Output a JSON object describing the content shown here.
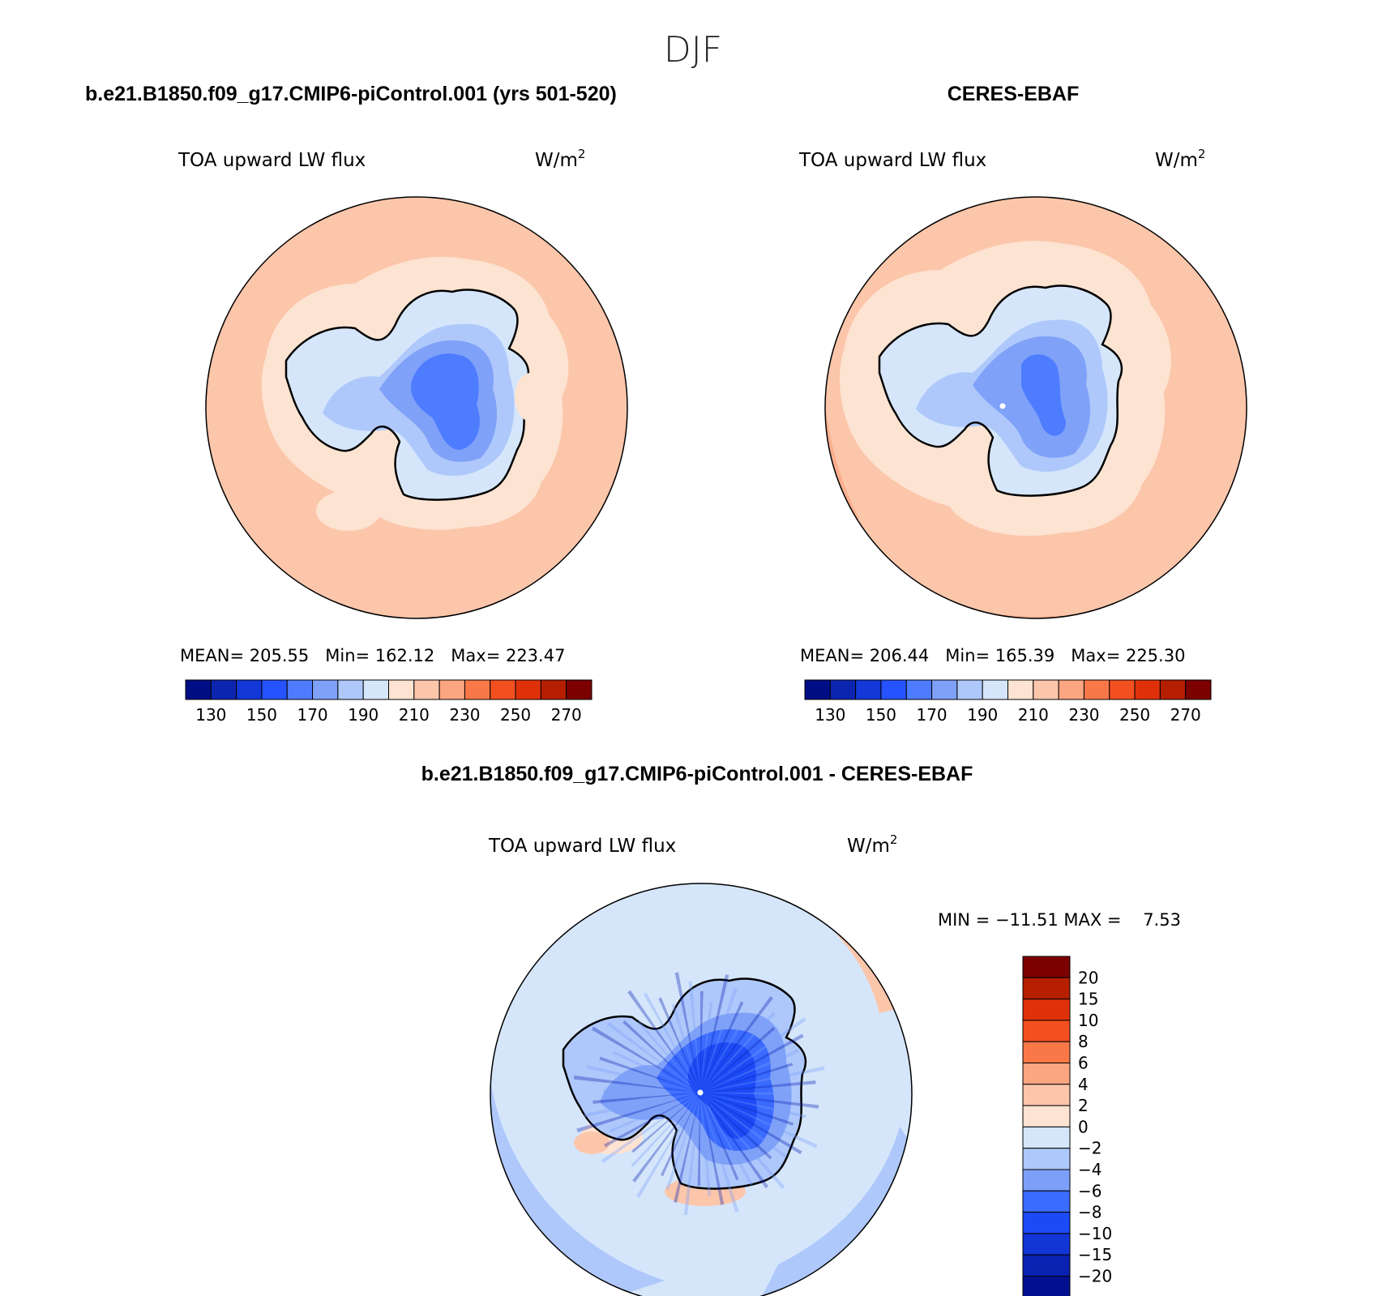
{
  "page_title": "DJF",
  "colors": {
    "flux_scale": [
      "#000e85",
      "#0c25b0",
      "#1238d8",
      "#2653ff",
      "#4e7cff",
      "#7fa1f8",
      "#aec8fb",
      "#d5e6fb",
      "#fde3d1",
      "#fcc6ab",
      "#fba581",
      "#fa7847",
      "#f3501f",
      "#df3109",
      "#b51f00",
      "#7d0000"
    ],
    "diff_scale": [
      "#00108f",
      "#0a22b2",
      "#1235d6",
      "#1c4af5",
      "#3b6bff",
      "#7ca0f9",
      "#aec8fb",
      "#d5e6fb",
      "#fde3d1",
      "#fcc6ab",
      "#fba581",
      "#fa7847",
      "#f3501f",
      "#df3109",
      "#b51f00",
      "#7d0000"
    ],
    "coastline": "#000000"
  },
  "panels": {
    "model": {
      "title": "b.e21.B1850.f09_g17.CMIP6-piControl.001 (yrs 501-520)",
      "variable": "TOA upward LW flux",
      "units_base": "W/m",
      "units_exp": "2",
      "stats": "MEAN= 205.55   Min= 162.12   Max= 223.47"
    },
    "obs": {
      "title": "CERES-EBAF",
      "variable": "TOA upward LW flux",
      "units_base": "W/m",
      "units_exp": "2",
      "stats": "MEAN= 206.44   Min= 165.39   Max= 225.30"
    },
    "diff": {
      "title": "b.e21.B1850.f09_g17.CMIP6-piControl.001 - CERES-EBAF",
      "variable": "TOA upward LW flux",
      "units_base": "W/m",
      "units_exp": "2",
      "stats": "MIN = −11.51 MAX =    7.53"
    }
  },
  "colorbars": {
    "flux_ticks": [
      "130",
      "150",
      "170",
      "190",
      "210",
      "230",
      "250",
      "270"
    ],
    "diff_ticks": [
      "20",
      "15",
      "10",
      "8",
      "6",
      "4",
      "2",
      "0",
      "−2",
      "−4",
      "−6",
      "−8",
      "−10",
      "−15",
      "−20"
    ]
  }
}
